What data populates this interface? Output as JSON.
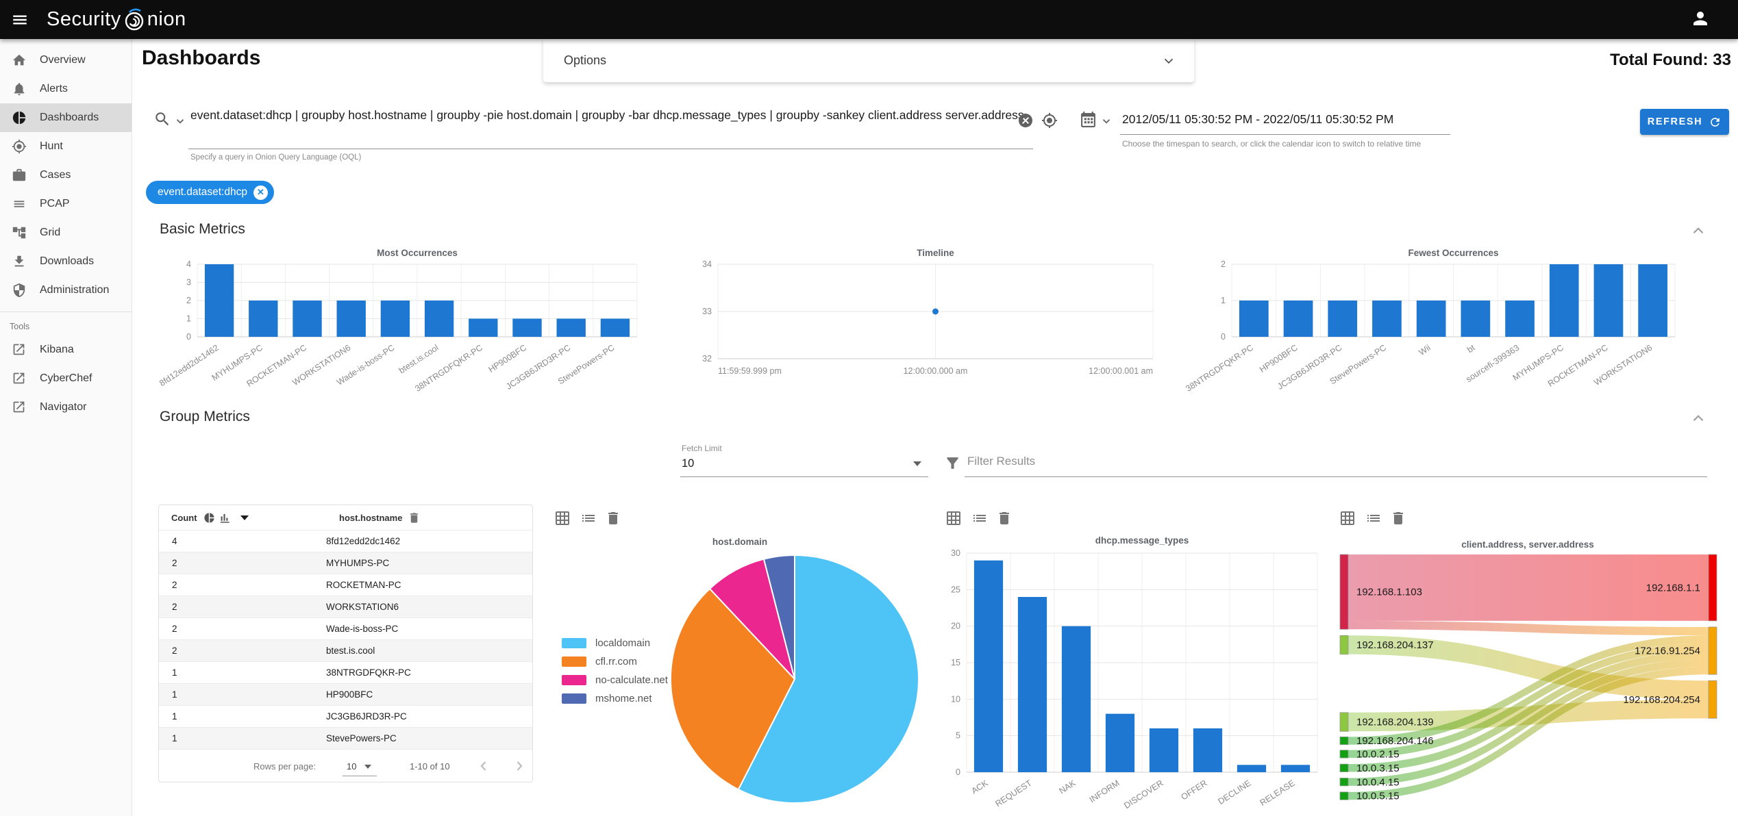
{
  "topbar": {
    "title": "Security Onion"
  },
  "sidebar": {
    "items": [
      {
        "label": "Overview"
      },
      {
        "label": "Alerts"
      },
      {
        "label": "Dashboards"
      },
      {
        "label": "Hunt"
      },
      {
        "label": "Cases"
      },
      {
        "label": "PCAP"
      },
      {
        "label": "Grid"
      },
      {
        "label": "Downloads"
      },
      {
        "label": "Administration"
      }
    ],
    "tools_label": "Tools",
    "tools": [
      {
        "label": "Kibana"
      },
      {
        "label": "CyberChef"
      },
      {
        "label": "Navigator"
      }
    ]
  },
  "header": {
    "title": "Dashboards",
    "options_label": "Options",
    "total_found": "Total Found: 33"
  },
  "search": {
    "query": "event.dataset:dhcp | groupby host.hostname | groupby -pie host.domain | groupby -bar dhcp.message_types | groupby -sankey client.address server.address",
    "hint": "Specify a query in Onion Query Language (OQL)"
  },
  "timespan": {
    "value": "2012/05/11 05:30:52 PM - 2022/05/11 05:30:52 PM",
    "hint": "Choose the timespan to search, or click the calendar icon to switch to relative time",
    "refresh_label": "REFRESH"
  },
  "filter_chip": {
    "label": "event.dataset:dhcp"
  },
  "sections": {
    "basic": "Basic Metrics",
    "group": "Group Metrics"
  },
  "group_controls": {
    "fetch_limit_label": "Fetch Limit",
    "fetch_limit_value": "10",
    "filter_placeholder": "Filter Results"
  },
  "table": {
    "columns": {
      "count": "Count",
      "hostname": "host.hostname"
    },
    "rows": [
      {
        "count": "4",
        "hostname": "8fd12edd2dc1462"
      },
      {
        "count": "2",
        "hostname": "MYHUMPS-PC"
      },
      {
        "count": "2",
        "hostname": "ROCKETMAN-PC"
      },
      {
        "count": "2",
        "hostname": "WORKSTATION6"
      },
      {
        "count": "2",
        "hostname": "Wade-is-boss-PC"
      },
      {
        "count": "2",
        "hostname": "btest.is.cool"
      },
      {
        "count": "1",
        "hostname": "38NTRGDFQKR-PC"
      },
      {
        "count": "1",
        "hostname": "HP900BFC"
      },
      {
        "count": "1",
        "hostname": "JC3GB6JRD3R-PC"
      },
      {
        "count": "1",
        "hostname": "StevePowers-PC"
      }
    ],
    "footer": {
      "rows_per_page_label": "Rows per page:",
      "rows_per_page_value": "10",
      "range": "1-10 of 10"
    }
  },
  "colors": {
    "bar_blue": "#1e78d2",
    "accent_blue": "#1e88e5",
    "grid_line": "#e6e6e6",
    "tick_text": "#8a8a8a"
  },
  "chart_data": [
    {
      "id": "most_occurrences",
      "type": "bar",
      "title": "Most Occurrences",
      "categories": [
        "8fd12edd2dc1462",
        "MYHUMPS-PC",
        "ROCKETMAN-PC",
        "WORKSTATION6",
        "Wade-is-boss-PC",
        "btest.is.cool",
        "38NTRGDFQKR-PC",
        "HP900BFC",
        "JC3GB6JRD3R-PC",
        "StevePowers-PC"
      ],
      "values": [
        4,
        2,
        2,
        2,
        2,
        2,
        1,
        1,
        1,
        1
      ],
      "ylim": [
        0,
        4
      ],
      "yticks": [
        0,
        1,
        2,
        3,
        4
      ]
    },
    {
      "id": "timeline",
      "type": "scatter",
      "title": "Timeline",
      "x_tick_labels": [
        "11:59:59.999 pm",
        "12:00:00.000 am",
        "12:00:00.001 am"
      ],
      "points": [
        {
          "x": 0.5,
          "y": 33
        }
      ],
      "ylim": [
        32,
        34
      ],
      "yticks": [
        32,
        33,
        34
      ]
    },
    {
      "id": "fewest_occurrences",
      "type": "bar",
      "title": "Fewest Occurrences",
      "categories": [
        "38NTRGDFQKR-PC",
        "HP900BFC",
        "JC3GB6JRD3R-PC",
        "StevePowers-PC",
        "Wii",
        "bt",
        "sourcefi-399363",
        "MYHUMPS-PC",
        "ROCKETMAN-PC",
        "WORKSTATION6"
      ],
      "values": [
        1,
        1,
        1,
        1,
        1,
        1,
        1,
        2,
        2,
        2
      ],
      "ylim": [
        0,
        2
      ],
      "yticks": [
        0,
        1,
        2
      ]
    },
    {
      "id": "host_domain",
      "type": "pie",
      "title": "host.domain",
      "slices": [
        {
          "label": "localdomain",
          "pct": 57.5,
          "color": "#4ec3f5"
        },
        {
          "label": "cfl.rr.com",
          "pct": 30.5,
          "color": "#f58220"
        },
        {
          "label": "no-calculate.net",
          "pct": 8,
          "color": "#ec268f"
        },
        {
          "label": "mshome.net",
          "pct": 4,
          "color": "#5069b3"
        }
      ]
    },
    {
      "id": "dhcp_message_types",
      "type": "bar",
      "title": "dhcp.message_types",
      "categories": [
        "ACK",
        "REQUEST",
        "NAK",
        "INFORM",
        "DISCOVER",
        "OFFER",
        "DECLINE",
        "RELEASE"
      ],
      "values": [
        29,
        24,
        20,
        8,
        6,
        6,
        1,
        1
      ],
      "ylim": [
        0,
        30
      ],
      "yticks": [
        0,
        5,
        10,
        15,
        20,
        25,
        30
      ]
    },
    {
      "id": "sankey",
      "type": "sankey",
      "title": "client.address, server.address",
      "nodes": [
        {
          "id": "192.168.1.103",
          "side": "left",
          "color": "#d2234a"
        },
        {
          "id": "192.168.204.137",
          "side": "left",
          "color": "#8dc63f"
        },
        {
          "id": "192.168.204.139",
          "side": "left",
          "color": "#8dc63f"
        },
        {
          "id": "192.168.204.146",
          "side": "left",
          "color": "#13a113"
        },
        {
          "id": "10.0.2.15",
          "side": "left",
          "color": "#13a113"
        },
        {
          "id": "10.0.3.15",
          "side": "left",
          "color": "#13a113"
        },
        {
          "id": "10.0.4.15",
          "side": "left",
          "color": "#13a113"
        },
        {
          "id": "10.0.5.15",
          "side": "left",
          "color": "#13a113"
        },
        {
          "id": "192.168.1.1",
          "side": "right",
          "color": "#ee0000"
        },
        {
          "id": "172.16.91.254",
          "side": "right",
          "color": "#f5a300"
        },
        {
          "id": "192.168.204.254",
          "side": "right",
          "color": "#f5a300"
        }
      ],
      "links": [
        {
          "source": "192.168.1.103",
          "target": "192.168.1.1",
          "value": 10.2
        },
        {
          "source": "192.168.1.103",
          "target": "172.16.91.254",
          "value": 1.3
        },
        {
          "source": "192.168.204.137",
          "target": "192.168.204.254",
          "value": 2.9
        },
        {
          "source": "192.168.204.139",
          "target": "192.168.204.254",
          "value": 2.9
        },
        {
          "source": "192.168.204.146",
          "target": "172.16.91.254",
          "value": 1.2
        },
        {
          "source": "10.0.2.15",
          "target": "172.16.91.254",
          "value": 1.2
        },
        {
          "source": "10.0.3.15",
          "target": "172.16.91.254",
          "value": 1.2
        },
        {
          "source": "10.0.4.15",
          "target": "172.16.91.254",
          "value": 1.2
        },
        {
          "source": "10.0.5.15",
          "target": "172.16.91.254",
          "value": 1.2
        }
      ]
    }
  ]
}
